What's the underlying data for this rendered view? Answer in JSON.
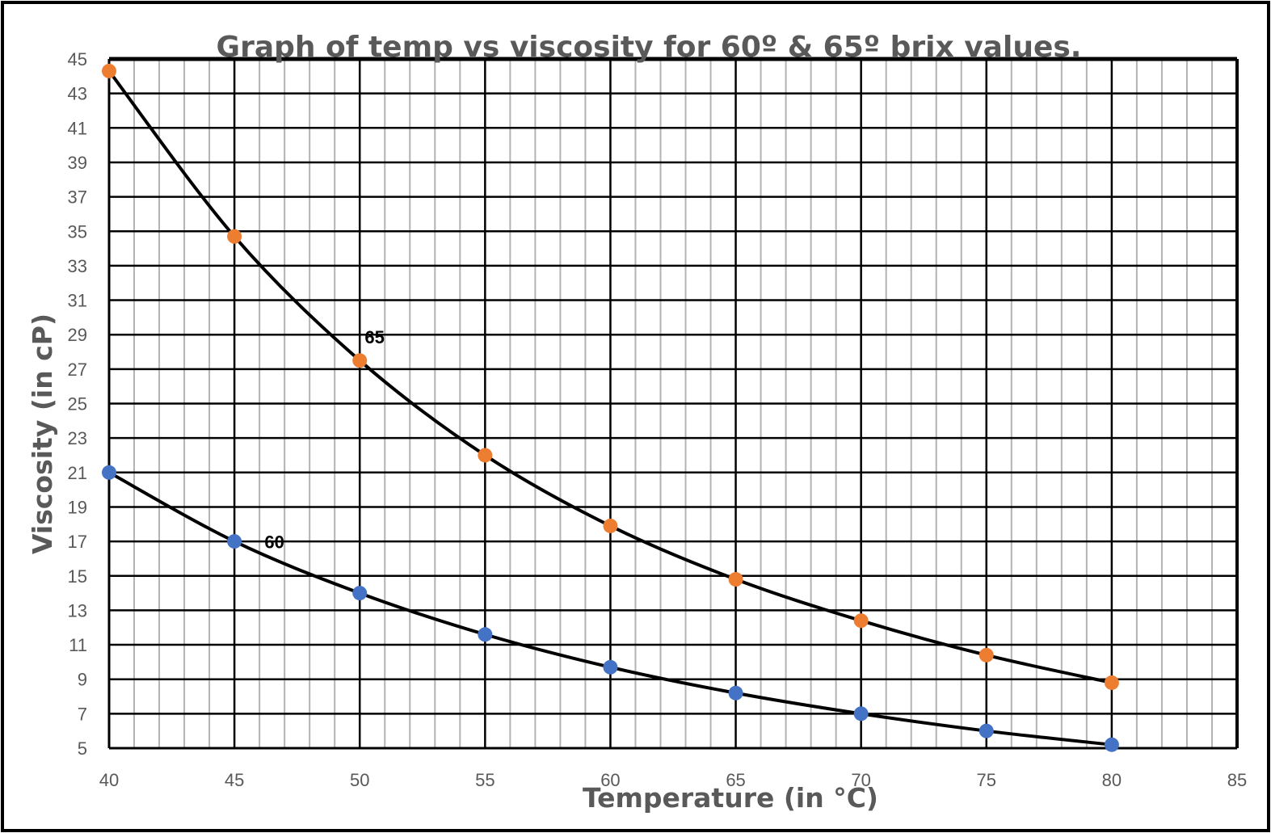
{
  "chart_data": {
    "type": "line",
    "title": "Graph of temp vs viscosity for 60º & 65º brix values.",
    "xlabel": "Temperature (in °C)",
    "ylabel": "Viscosity (in cP)",
    "xlim": [
      40,
      85
    ],
    "ylim": [
      5,
      45
    ],
    "x_ticks": [
      "40",
      "45",
      "50",
      "55",
      "60",
      "65",
      "70",
      "75",
      "80",
      "85"
    ],
    "y_ticks": [
      "5",
      "7",
      "9",
      "11",
      "13",
      "15",
      "17",
      "19",
      "21",
      "23",
      "25",
      "27",
      "29",
      "31",
      "33",
      "35",
      "37",
      "39",
      "41",
      "43",
      "45"
    ],
    "grid": true,
    "legend": "none",
    "series": [
      {
        "name": "60",
        "color": "#4472C4",
        "x": [
          40,
          45,
          50,
          55,
          60,
          65,
          70,
          75,
          80
        ],
        "y": [
          21.0,
          17.0,
          14.0,
          11.6,
          9.7,
          8.2,
          7.0,
          6.0,
          5.2
        ]
      },
      {
        "name": "65",
        "color": "#ED7D31",
        "x": [
          40,
          45,
          50,
          55,
          60,
          65,
          70,
          75,
          80
        ],
        "y": [
          44.3,
          34.7,
          27.5,
          22.0,
          17.9,
          14.8,
          12.4,
          10.4,
          8.8
        ]
      }
    ]
  }
}
